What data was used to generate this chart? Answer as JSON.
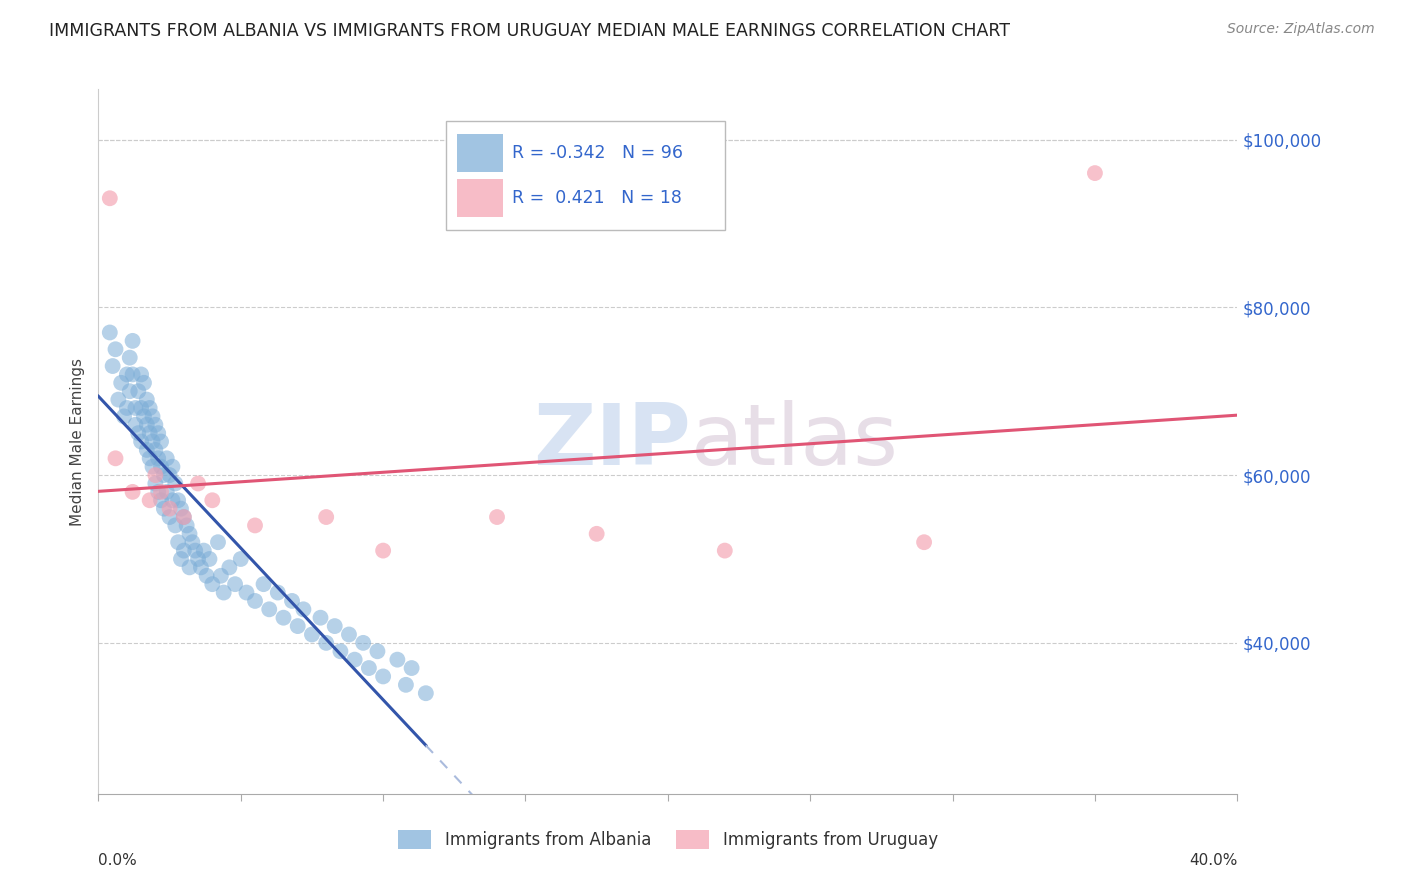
{
  "title": "IMMIGRANTS FROM ALBANIA VS IMMIGRANTS FROM URUGUAY MEDIAN MALE EARNINGS CORRELATION CHART",
  "source": "Source: ZipAtlas.com",
  "ylabel": "Median Male Earnings",
  "y_ticks": [
    40000,
    60000,
    80000,
    100000
  ],
  "y_tick_labels": [
    "$40,000",
    "$60,000",
    "$80,000",
    "$100,000"
  ],
  "xmin": 0.0,
  "xmax": 0.4,
  "ymin": 22000,
  "ymax": 106000,
  "albania_color": "#7aacd6",
  "uruguay_color": "#f4a0b0",
  "albania_line_color": "#3355aa",
  "albania_dash_color": "#aabbdd",
  "uruguay_line_color": "#e05575",
  "albania_R": -0.342,
  "albania_N": 96,
  "uruguay_R": 0.421,
  "uruguay_N": 18,
  "legend_albania_label": "Immigrants from Albania",
  "legend_uruguay_label": "Immigrants from Uruguay",
  "albania_x": [
    0.004,
    0.005,
    0.006,
    0.007,
    0.008,
    0.009,
    0.01,
    0.01,
    0.011,
    0.011,
    0.012,
    0.012,
    0.013,
    0.013,
    0.014,
    0.014,
    0.015,
    0.015,
    0.015,
    0.016,
    0.016,
    0.017,
    0.017,
    0.017,
    0.018,
    0.018,
    0.018,
    0.019,
    0.019,
    0.019,
    0.02,
    0.02,
    0.02,
    0.021,
    0.021,
    0.021,
    0.022,
    0.022,
    0.022,
    0.023,
    0.023,
    0.024,
    0.024,
    0.025,
    0.025,
    0.026,
    0.026,
    0.027,
    0.027,
    0.028,
    0.028,
    0.029,
    0.029,
    0.03,
    0.03,
    0.031,
    0.032,
    0.032,
    0.033,
    0.034,
    0.035,
    0.036,
    0.037,
    0.038,
    0.039,
    0.04,
    0.042,
    0.043,
    0.044,
    0.046,
    0.048,
    0.05,
    0.052,
    0.055,
    0.058,
    0.06,
    0.063,
    0.065,
    0.068,
    0.07,
    0.072,
    0.075,
    0.078,
    0.08,
    0.083,
    0.085,
    0.088,
    0.09,
    0.093,
    0.095,
    0.098,
    0.1,
    0.105,
    0.108,
    0.11,
    0.115
  ],
  "albania_y": [
    77000,
    73000,
    75000,
    69000,
    71000,
    67000,
    72000,
    68000,
    74000,
    70000,
    76000,
    72000,
    68000,
    66000,
    70000,
    65000,
    72000,
    68000,
    64000,
    71000,
    67000,
    66000,
    63000,
    69000,
    65000,
    62000,
    68000,
    64000,
    61000,
    67000,
    63000,
    59000,
    66000,
    62000,
    58000,
    65000,
    61000,
    57000,
    64000,
    60000,
    56000,
    62000,
    58000,
    60000,
    55000,
    61000,
    57000,
    59000,
    54000,
    57000,
    52000,
    56000,
    50000,
    55000,
    51000,
    54000,
    53000,
    49000,
    52000,
    51000,
    50000,
    49000,
    51000,
    48000,
    50000,
    47000,
    52000,
    48000,
    46000,
    49000,
    47000,
    50000,
    46000,
    45000,
    47000,
    44000,
    46000,
    43000,
    45000,
    42000,
    44000,
    41000,
    43000,
    40000,
    42000,
    39000,
    41000,
    38000,
    40000,
    37000,
    39000,
    36000,
    38000,
    35000,
    37000,
    34000
  ],
  "uruguay_x": [
    0.004,
    0.006,
    0.012,
    0.018,
    0.02,
    0.022,
    0.025,
    0.03,
    0.035,
    0.04,
    0.055,
    0.08,
    0.1,
    0.14,
    0.175,
    0.22,
    0.29,
    0.35
  ],
  "uruguay_y": [
    93000,
    62000,
    58000,
    57000,
    60000,
    58000,
    56000,
    55000,
    59000,
    57000,
    54000,
    55000,
    51000,
    55000,
    53000,
    51000,
    52000,
    96000
  ],
  "watermark_zip": "ZIP",
  "watermark_atlas": "atlas",
  "background_color": "#ffffff",
  "grid_color": "#cccccc",
  "top_line_y": 100000
}
